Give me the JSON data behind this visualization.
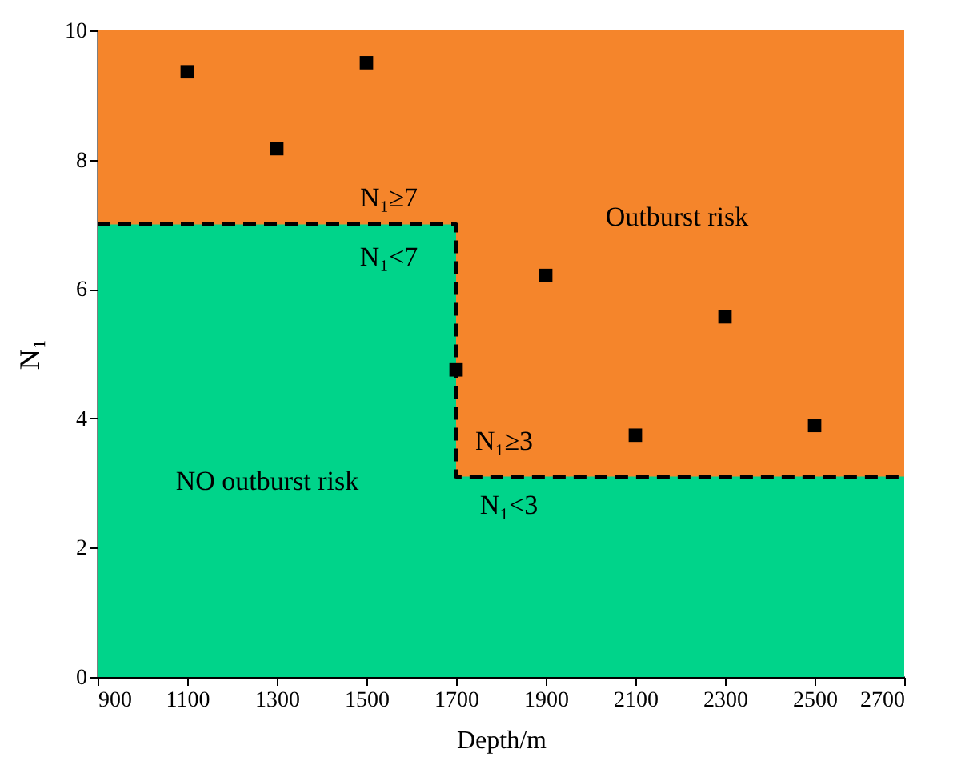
{
  "chart_data": {
    "type": "scatter",
    "xlabel": "Depth/m",
    "ylabel": "N₁",
    "xlim": [
      900,
      2700
    ],
    "xticks": [
      900,
      1100,
      1300,
      1500,
      1700,
      1900,
      2100,
      2300,
      2500,
      2700
    ],
    "ylim": [
      0,
      10
    ],
    "yticks": [
      0,
      2,
      4,
      6,
      8,
      10
    ],
    "grid": false,
    "bands": [
      {
        "axis": "y",
        "from": 0,
        "to": 10,
        "color": "#f5852b"
      }
    ],
    "series": [
      {
        "type": "area",
        "color": "#00d48a",
        "line_style": "dashed",
        "x": [
          900,
          1700,
          1700,
          2700
        ],
        "values": [
          7,
          7,
          3.1,
          3.1
        ]
      },
      {
        "color": "#000000",
        "marker": "square",
        "x": [
          1100,
          1300,
          1500,
          1700,
          1900,
          2100,
          2300,
          2500
        ],
        "values": [
          9.36,
          8.17,
          9.5,
          4.75,
          6.21,
          3.74,
          5.57,
          3.89
        ]
      }
    ],
    "annotations": [
      "N₁≥7",
      "N₁<7",
      "N₁≥3",
      "N₁<3",
      "Outburst risk",
      "NO outburst risk"
    ]
  }
}
